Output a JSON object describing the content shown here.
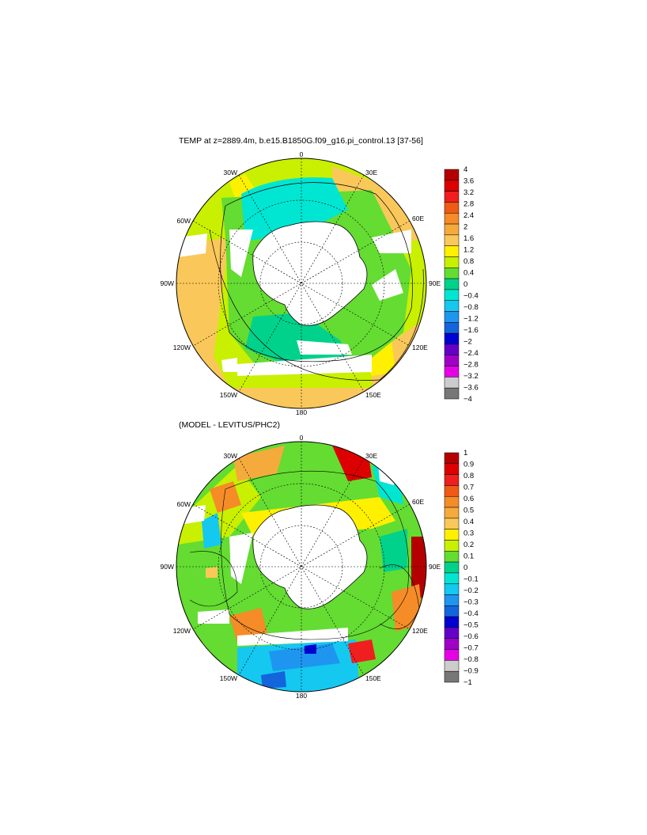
{
  "panels": [
    {
      "title": "TEMP at z=2889.4m, b.e15.B1850G.f09_g16.pi_control.13 [37-56]",
      "colorbar": {
        "labels": [
          "4",
          "3.6",
          "3.2",
          "2.8",
          "2.4",
          "2",
          "1.6",
          "1.2",
          "0.8",
          "0.4",
          "0",
          "−0.4",
          "−0.8",
          "−1.2",
          "−1.6",
          "−2",
          "−2.4",
          "−2.8",
          "−3.2",
          "−3.6",
          "−4"
        ]
      }
    },
    {
      "title": "(MODEL - LEVITUS/PHC2)",
      "colorbar": {
        "labels": [
          "1",
          "0.9",
          "0.8",
          "0.7",
          "0.6",
          "0.5",
          "0.4",
          "0.3",
          "0.2",
          "0.1",
          "0",
          "−0.1",
          "−0.2",
          "−0.3",
          "−0.4",
          "−0.5",
          "−0.6",
          "−0.7",
          "−0.8",
          "−0.9",
          "−1"
        ]
      }
    }
  ],
  "longitude_labels": {
    "top": "0",
    "lon30e": "30E",
    "lon60e": "60E",
    "lon90e": "90E",
    "lon120e": "120E",
    "lon150e": "150E",
    "bottom": "180",
    "lon150w": "150W",
    "lon120w": "120W",
    "lon90w": "90W",
    "lon60w": "60W",
    "lon30w": "30W"
  },
  "colors": {
    "land": "#ffffff",
    "palette_top_to_bottom": [
      "#b40000",
      "#dc0000",
      "#f01e1e",
      "#f05a14",
      "#f58c28",
      "#f5aa3c",
      "#fac85a",
      "#fff000",
      "#c8f000",
      "#64dc32",
      "#00d28c",
      "#00e6d2",
      "#14c8f0",
      "#1e96f0",
      "#1464dc",
      "#0000d2",
      "#6400c8",
      "#a000c8",
      "#e600e6",
      "#cccccc",
      "#777777"
    ]
  }
}
